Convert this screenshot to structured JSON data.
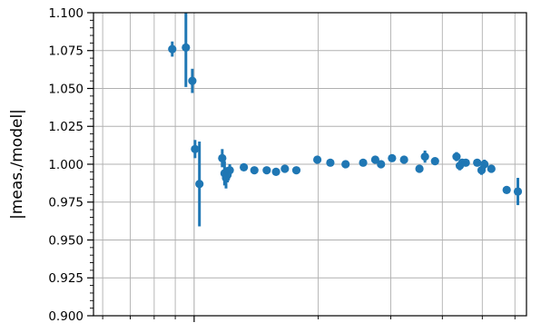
{
  "chart_data": {
    "type": "scatter",
    "title": "",
    "xlabel": "",
    "ylabel": "|meas./model|",
    "xscale": "log",
    "xlim": [
      0.57,
      6.4
    ],
    "ylim": [
      0.9,
      1.1
    ],
    "yticks": [
      0.9,
      0.925,
      0.95,
      0.975,
      1.0,
      1.025,
      1.05,
      1.075,
      1.1
    ],
    "ytick_labels": [
      "0.900",
      "0.925",
      "0.950",
      "0.975",
      "1.000",
      "1.025",
      "1.050",
      "1.075",
      "1.100"
    ],
    "grid": true,
    "legend": "none",
    "series": [
      {
        "x": [
          0.885,
          0.955,
          0.99,
          1.005,
          1.03,
          1.17,
          1.185,
          1.195,
          1.205,
          1.22,
          1.32,
          1.4,
          1.5,
          1.58,
          1.66,
          1.77,
          1.99,
          2.14,
          2.33,
          2.57,
          2.75,
          2.84,
          3.02,
          3.23,
          3.52,
          3.63,
          3.84,
          4.33,
          4.41,
          4.47,
          4.56,
          4.86,
          4.98,
          5.06,
          5.26,
          5.73,
          6.1
        ],
        "y": [
          1.076,
          1.077,
          1.055,
          1.01,
          0.987,
          1.004,
          0.994,
          0.991,
          0.993,
          0.996,
          0.998,
          0.996,
          0.996,
          0.995,
          0.997,
          0.996,
          1.003,
          1.001,
          1.0,
          1.001,
          1.003,
          1.0,
          1.004,
          1.003,
          0.997,
          1.005,
          1.002,
          1.005,
          0.999,
          1.001,
          1.001,
          1.001,
          0.996,
          1.0,
          0.997,
          0.983,
          0.982
        ],
        "yerr": [
          0.005,
          0.026,
          0.008,
          0.006,
          0.028,
          0.006,
          0.008,
          0.007,
          0.005,
          0.004,
          0.002,
          0.002,
          0.002,
          0.002,
          0.002,
          0.002,
          0.002,
          0.002,
          0.002,
          0.002,
          0.002,
          0.002,
          0.002,
          0.002,
          0.002,
          0.004,
          0.002,
          0.003,
          0.003,
          0.002,
          0.002,
          0.002,
          0.003,
          0.003,
          0.002,
          0.002,
          0.009
        ]
      }
    ],
    "colors": {
      "series": "#1f77b4",
      "grid": "#b0b0b0",
      "axis": "#000000"
    }
  }
}
